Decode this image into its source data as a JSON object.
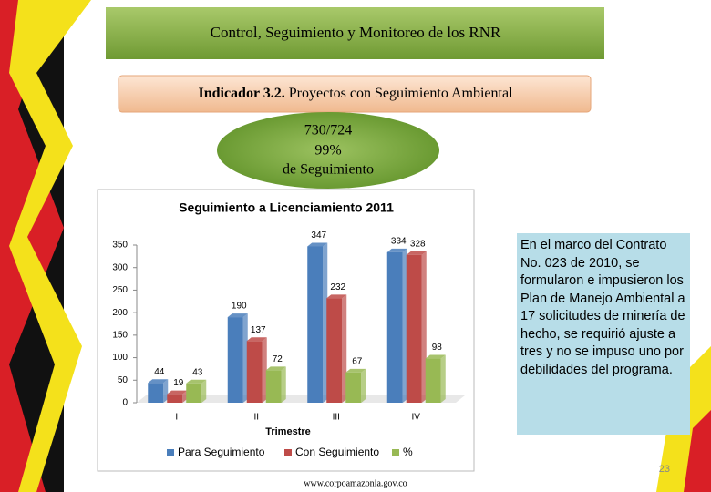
{
  "header": {
    "title": "Control, Seguimiento y Monitoreo de los RNR"
  },
  "indicator": {
    "label": "Indicador 3.2.",
    "text": "Proyectos con Seguimiento Ambiental"
  },
  "summary": {
    "ratio": "730/724",
    "percent": "99%",
    "caption": "de Seguimiento"
  },
  "chart_data": {
    "type": "bar",
    "title": "Seguimiento a Licenciamiento 2011",
    "x_label": "Trimestre",
    "categories": [
      "I",
      "II",
      "III",
      "IV"
    ],
    "series": [
      {
        "name": "Para Seguimiento",
        "color": "#4a7ebb",
        "values": [
          44,
          190,
          347,
          334
        ]
      },
      {
        "name": "Con Seguimiento",
        "color": "#be4b48",
        "values": [
          19,
          137,
          232,
          328
        ]
      },
      {
        "name": "%",
        "color": "#98b954",
        "values": [
          43,
          72,
          67,
          98
        ]
      }
    ],
    "ylim": [
      0,
      350
    ],
    "yticks": [
      0,
      50,
      100,
      150,
      200,
      250,
      300,
      350
    ],
    "grid": false
  },
  "note": {
    "text": "En el marco del Contrato No. 023 de 2010, se formularon e impusieron los Plan de Manejo Ambiental a 17 solicitudes de minería de hecho, se requirió ajuste a tres y no se impuso uno por debilidades del programa."
  },
  "page_number": "23",
  "footer": "www.corpoamazonia.gov.co"
}
